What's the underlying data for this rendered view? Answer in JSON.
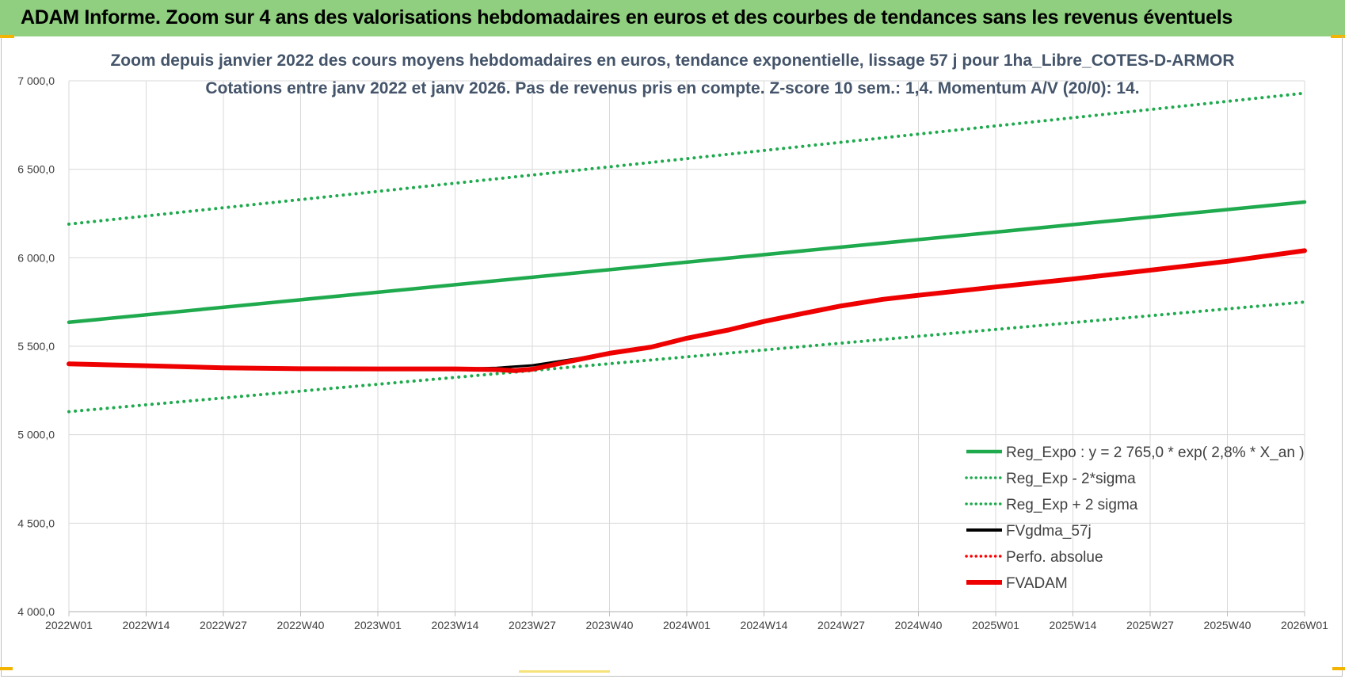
{
  "header": {
    "title": "ADAM Informe. Zoom sur 4 ans des valorisations hebdomadaires en euros et des courbes de tendances sans les revenus éventuels"
  },
  "chart_data": {
    "type": "line",
    "title": "Zoom depuis janvier 2022 des cours moyens hebdomadaires en euros, tendance exponentielle, lissage 57 j pour 1ha_Libre_COTES-D-ARMOR",
    "subtitle": "Cotations entre janv 2022 et janv 2026. Pas de revenus pris en compte. Z-score 10 sem.: 1,4. Momentum A/V (20/0): 14.",
    "xlabel": "",
    "ylabel": "",
    "ylim": [
      4000,
      7000
    ],
    "yticks": [
      "7 000,0",
      "6 500,0",
      "6 000,0",
      "5 500,0",
      "5 000,0",
      "4 500,0",
      "4 000,0"
    ],
    "ytick_values": [
      7000,
      6500,
      6000,
      5500,
      5000,
      4500,
      4000
    ],
    "categories": [
      "2022W01",
      "2022W14",
      "2022W27",
      "2022W40",
      "2023W01",
      "2023W14",
      "2023W27",
      "2023W40",
      "2024W01",
      "2024W14",
      "2024W27",
      "2024W40",
      "2025W01",
      "2025W14",
      "2025W27",
      "2025W40",
      "2026W01"
    ],
    "grid": true,
    "legend_position": "bottom-right",
    "series": [
      {
        "name": "Reg_Expo : y = 2 765,0 * exp( 2,8% *  X_an )",
        "color": "#1faa4e",
        "style": "solid",
        "x": [
          0,
          208
        ],
        "values": [
          5635,
          6315
        ]
      },
      {
        "name": "Reg_Exp - 2*sigma",
        "color": "#1faa4e",
        "style": "dotted",
        "x": [
          0,
          208
        ],
        "values": [
          5130,
          5750
        ]
      },
      {
        "name": "Reg_Exp + 2 sigma",
        "color": "#1faa4e",
        "style": "dotted",
        "x": [
          0,
          208
        ],
        "values": [
          6190,
          6930
        ]
      },
      {
        "name": "FVgdma_57j",
        "color": "#000000",
        "style": "solid",
        "x": [
          0,
          13,
          26,
          39,
          52,
          65,
          72,
          78,
          85,
          91,
          98,
          104,
          111,
          117,
          124,
          130,
          137,
          143,
          156,
          169,
          182,
          195,
          208
        ],
        "values": [
          5400,
          5390,
          5378,
          5373,
          5372,
          5372,
          5378,
          5392,
          5428,
          5462,
          5495,
          5545,
          5592,
          5640,
          5690,
          5730,
          5768,
          5790,
          5835,
          5880,
          5930,
          5980,
          6040
        ]
      },
      {
        "name": "Perfo. absolue",
        "color": "#ff0000",
        "style": "dotted",
        "x": [],
        "values": []
      },
      {
        "name": "FVADAM",
        "color": "#ee0000",
        "style": "thick",
        "x": [
          0,
          13,
          26,
          39,
          52,
          65,
          72,
          75,
          78,
          85,
          91,
          98,
          104,
          111,
          117,
          124,
          130,
          137,
          143,
          156,
          169,
          182,
          195,
          208
        ],
        "values": [
          5400,
          5390,
          5378,
          5373,
          5372,
          5372,
          5368,
          5362,
          5370,
          5420,
          5460,
          5495,
          5545,
          5592,
          5640,
          5688,
          5728,
          5765,
          5788,
          5835,
          5880,
          5930,
          5980,
          6040
        ]
      }
    ]
  }
}
